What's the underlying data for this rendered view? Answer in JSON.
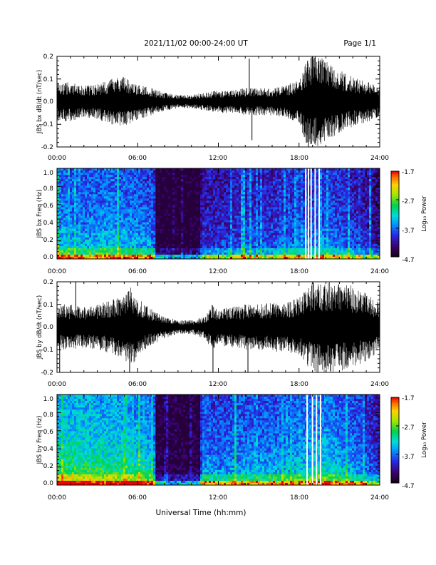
{
  "header": {
    "date_range": "2021/11/02  00:00-24:00 UT",
    "page": "Page 1/1"
  },
  "footer": {
    "xlabel": "Universal Time (hh:mm)"
  },
  "colorbar_legend": {
    "title": "Log₁₀ Power",
    "ticks": [
      "-1.7",
      "-2.7",
      "-3.7",
      "-4.7"
    ]
  },
  "chart_data": [
    {
      "id": "bx-timeseries",
      "type": "line",
      "ylabel": "JBS bx dB/dt (nT/sec)",
      "x_ticks": [
        "00:00",
        "06:00",
        "12:00",
        "18:00",
        "24:00"
      ],
      "y_ticks": [
        "0.2",
        "0.1",
        "0.0",
        "-0.1",
        "-0.2"
      ],
      "xlim_hours": [
        0,
        24
      ],
      "ylim": [
        -0.2,
        0.2
      ],
      "series": [
        {
          "envelope_hours": [
            0,
            1,
            2,
            3,
            4,
            5,
            6,
            7,
            8,
            9,
            10,
            11,
            12,
            13,
            14,
            15,
            16,
            17,
            18,
            18.5,
            19,
            19.5,
            20,
            21,
            22,
            23,
            24
          ],
          "envelope_amplitude": [
            0.08,
            0.09,
            0.07,
            0.08,
            0.1,
            0.11,
            0.08,
            0.06,
            0.04,
            0.03,
            0.03,
            0.04,
            0.05,
            0.05,
            0.06,
            0.06,
            0.06,
            0.07,
            0.1,
            0.18,
            0.2,
            0.2,
            0.18,
            0.14,
            0.11,
            0.09,
            0.07
          ],
          "spikes": [
            {
              "hour": 14.3,
              "value": 0.19
            },
            {
              "hour": 14.5,
              "value": -0.17
            },
            {
              "hour": 18.7,
              "value": -0.2
            },
            {
              "hour": 19.0,
              "value": 0.2
            },
            {
              "hour": 19.2,
              "value": 0.2
            }
          ]
        }
      ]
    },
    {
      "id": "bx-spectrogram",
      "type": "heatmap",
      "ylabel": "JBS bx Freq (Hz)",
      "x_ticks": [
        "00:00",
        "06:00",
        "12:00",
        "18:00",
        "24:00"
      ],
      "y_ticks": [
        "1.0",
        "0.8",
        "0.6",
        "0.4",
        "0.2",
        "0.0"
      ],
      "xlim_hours": [
        0,
        24
      ],
      "ylim": [
        0,
        1
      ],
      "zlim": [
        -4.7,
        -1.7
      ],
      "z_label": "Log₁₀ Power",
      "activity_hours": [
        0,
        2,
        4,
        6,
        7.2,
        7.4,
        9,
        10.6,
        10.8,
        12,
        14,
        16,
        18,
        20,
        22,
        24
      ],
      "activity_level": [
        0.55,
        0.5,
        0.55,
        0.5,
        0.45,
        0.02,
        0.02,
        0.02,
        0.3,
        0.3,
        0.35,
        0.35,
        0.4,
        0.45,
        0.35,
        0.2
      ],
      "gap_hours": [
        18.5,
        18.7,
        18.9,
        19.2,
        19.5
      ]
    },
    {
      "id": "by-timeseries",
      "type": "line",
      "ylabel": "JBS by dB/dt (nT/sec)",
      "x_ticks": [
        "00:00",
        "06:00",
        "12:00",
        "18:00",
        "24:00"
      ],
      "y_ticks": [
        "0.2",
        "0.1",
        "0.0",
        "-0.1",
        "-0.2"
      ],
      "xlim_hours": [
        0,
        24
      ],
      "ylim": [
        -0.2,
        0.2
      ],
      "series": [
        {
          "envelope_hours": [
            0,
            1,
            2,
            3,
            4,
            5,
            5.5,
            6,
            7,
            8,
            9,
            10,
            11,
            11.5,
            12,
            13,
            14,
            15,
            16,
            17,
            18,
            19,
            20,
            21,
            22,
            23,
            24
          ],
          "envelope_amplitude": [
            0.1,
            0.1,
            0.09,
            0.1,
            0.12,
            0.14,
            0.18,
            0.13,
            0.08,
            0.05,
            0.03,
            0.03,
            0.05,
            0.1,
            0.08,
            0.09,
            0.1,
            0.1,
            0.11,
            0.11,
            0.13,
            0.2,
            0.2,
            0.2,
            0.18,
            0.15,
            0.11
          ],
          "spikes": [
            {
              "hour": 0.2,
              "value": -0.2
            },
            {
              "hour": 1.4,
              "value": 0.2
            },
            {
              "hour": 5.4,
              "value": -0.2
            },
            {
              "hour": 11.6,
              "value": -0.2
            },
            {
              "hour": 14.2,
              "value": -0.2
            },
            {
              "hour": 19.4,
              "value": -0.2
            }
          ]
        }
      ]
    },
    {
      "id": "by-spectrogram",
      "type": "heatmap",
      "ylabel": "JBS by Freq (Hz)",
      "x_ticks": [
        "00:00",
        "06:00",
        "12:00",
        "18:00",
        "24:00"
      ],
      "y_ticks": [
        "1.0",
        "0.8",
        "0.6",
        "0.4",
        "0.2",
        "0.0"
      ],
      "xlim_hours": [
        0,
        24
      ],
      "ylim": [
        0,
        1
      ],
      "zlim": [
        -4.7,
        -1.7
      ],
      "z_label": "Log₁₀ Power",
      "activity_hours": [
        0,
        2,
        4,
        6,
        7.2,
        7.4,
        9,
        10.6,
        10.8,
        12,
        14,
        16,
        18,
        20,
        22,
        24
      ],
      "activity_level": [
        0.75,
        0.72,
        0.7,
        0.65,
        0.6,
        0.05,
        0.05,
        0.05,
        0.5,
        0.45,
        0.5,
        0.5,
        0.55,
        0.6,
        0.5,
        0.3
      ],
      "gap_hours": [
        18.6,
        19.0,
        19.3,
        19.6
      ]
    }
  ]
}
